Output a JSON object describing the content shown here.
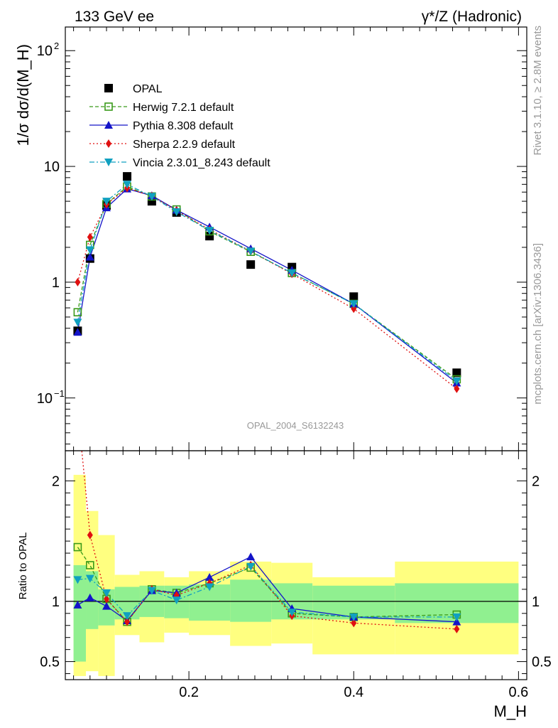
{
  "header": {
    "left": "133 GeV ee",
    "right": "γ*/Z (Hadronic)"
  },
  "side": {
    "rivet": "Rivet 3.1.10, ≥ 2.8M events",
    "mcplots": "mcplots.cern.ch [arXiv:1306.3436]"
  },
  "watermark": "OPAL_2004_S6132243",
  "colors": {
    "opal": "#000000",
    "herwig": "#3a9a1a",
    "pythia": "#1414c8",
    "sherpa": "#e01010",
    "vincia": "#10a0c0",
    "band_outer": "#ffff80",
    "band_inner": "#90f090"
  },
  "chart_data": [
    {
      "type": "scatter",
      "ylabel": "1/σ dσ/d(M_H)",
      "yscale": "log",
      "ylim": [
        0.035,
        160
      ],
      "xlim": [
        0.05,
        0.61
      ],
      "yticks": [
        "10^2",
        "10",
        "1",
        "10^-1"
      ],
      "legend_position": "top-left",
      "x": [
        0.065,
        0.08,
        0.1,
        0.125,
        0.155,
        0.185,
        0.225,
        0.275,
        0.325,
        0.4,
        0.525
      ],
      "series": [
        {
          "name": "OPAL",
          "marker": "square-filled",
          "values": [
            0.38,
            1.6,
            4.6,
            8.2,
            5.0,
            4.0,
            2.5,
            1.42,
            1.35,
            0.75,
            0.165
          ]
        },
        {
          "name": "Herwig 7.2.1 default",
          "marker": "square-open",
          "line": "dashed",
          "values": [
            0.55,
            2.1,
            4.75,
            6.7,
            5.5,
            4.25,
            2.75,
            1.83,
            1.2,
            0.65,
            0.145
          ]
        },
        {
          "name": "Pythia 8.308 default",
          "marker": "triangle-up",
          "line": "solid",
          "values": [
            0.37,
            1.65,
            4.4,
            6.4,
            5.6,
            4.2,
            3.0,
            1.95,
            1.27,
            0.65,
            0.135
          ]
        },
        {
          "name": "Sherpa 2.2.9 default",
          "marker": "diamond",
          "line": "dotted",
          "values": [
            1.0,
            2.45,
            4.7,
            6.5,
            5.55,
            4.15,
            2.85,
            1.85,
            1.18,
            0.59,
            0.12
          ]
        },
        {
          "name": "Vincia 2.3.01_8.243 default",
          "marker": "triangle-down",
          "line": "dashdot",
          "values": [
            0.45,
            1.9,
            5.0,
            7.0,
            5.5,
            4.05,
            2.8,
            1.85,
            1.2,
            0.65,
            0.14
          ]
        }
      ]
    },
    {
      "type": "line",
      "xlabel": "M_H",
      "ylabel": "Ratio to OPAL",
      "ylim": [
        0.35,
        2.25
      ],
      "xlim": [
        0.05,
        0.61
      ],
      "xticks": [
        "0.2",
        "0.4",
        "0.6"
      ],
      "yticks": [
        "0.5",
        "1",
        "2"
      ],
      "x": [
        0.065,
        0.08,
        0.1,
        0.125,
        0.155,
        0.185,
        0.225,
        0.275,
        0.325,
        0.4,
        0.525
      ],
      "series": [
        {
          "name": "Herwig 7.2.1 default",
          "values": [
            1.45,
            1.3,
            1.02,
            0.83,
            1.1,
            1.07,
            1.15,
            1.28,
            0.9,
            0.87,
            0.89
          ]
        },
        {
          "name": "Pythia 8.308 default",
          "values": [
            0.97,
            1.03,
            0.96,
            0.84,
            1.09,
            1.07,
            1.2,
            1.37,
            0.94,
            0.87,
            0.83
          ]
        },
        {
          "name": "Sherpa 2.2.9 default",
          "values": [
            2.6,
            1.55,
            1.02,
            0.83,
            1.1,
            1.05,
            1.15,
            1.3,
            0.88,
            0.82,
            0.77
          ]
        },
        {
          "name": "Vincia 2.3.01_8.243 default",
          "values": [
            1.18,
            1.19,
            1.07,
            0.88,
            1.09,
            1.01,
            1.12,
            1.29,
            0.91,
            0.87,
            0.87
          ]
        }
      ],
      "bands": {
        "edges": [
          0.06,
          0.075,
          0.09,
          0.11,
          0.14,
          0.17,
          0.2,
          0.25,
          0.3,
          0.35,
          0.45,
          0.6
        ],
        "inner_low": [
          0.5,
          0.77,
          0.8,
          0.85,
          0.87,
          0.86,
          0.84,
          0.83,
          0.85,
          0.85,
          0.82
        ],
        "inner_high": [
          1.3,
          1.25,
          1.1,
          1.12,
          1.13,
          1.13,
          1.14,
          1.18,
          1.15,
          1.13,
          1.15
        ],
        "outer_low": [
          0.38,
          0.42,
          0.38,
          0.72,
          0.66,
          0.74,
          0.72,
          0.63,
          0.65,
          0.56,
          0.56
        ],
        "outer_high": [
          2.05,
          1.75,
          1.55,
          1.22,
          1.25,
          1.2,
          1.25,
          1.33,
          1.32,
          1.2,
          1.33
        ]
      }
    }
  ]
}
